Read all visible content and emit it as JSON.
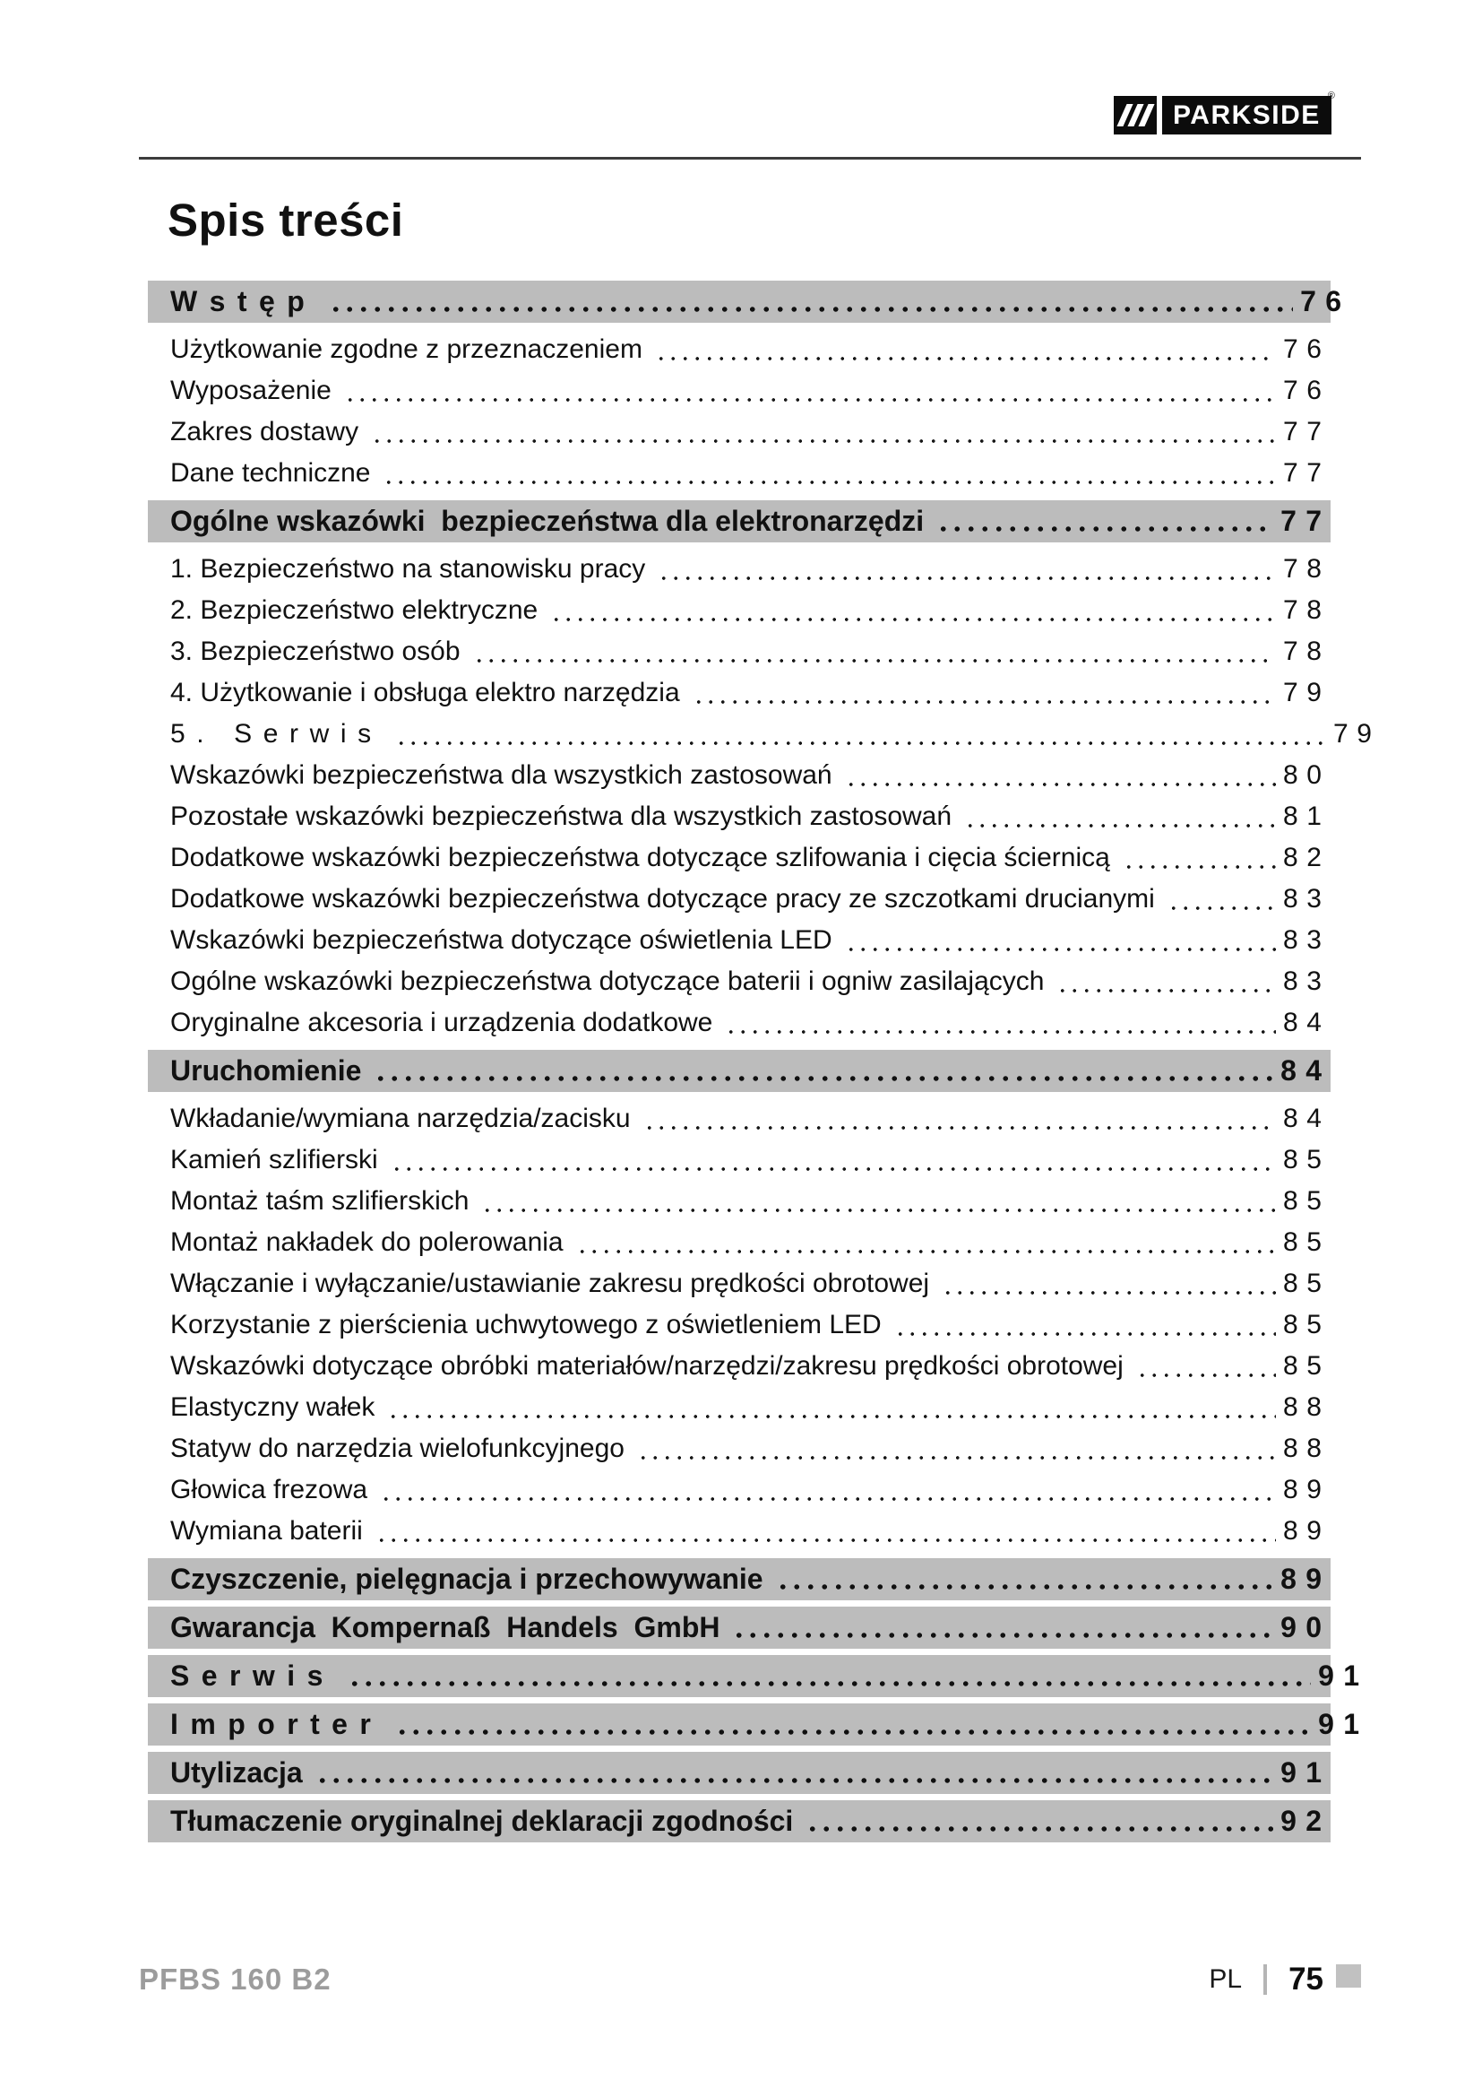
{
  "page": {
    "brand": {
      "logo_text": "PARKSIDE",
      "logo_reg": "®",
      "logo_bg": "#0c0c0c"
    },
    "title": "Spis treści",
    "accent_gray": "#bcbcbc",
    "toc": [
      {
        "label": "Wstęp",
        "page": "76",
        "style": "header",
        "spaced": true,
        "numOut": "sm"
      },
      {
        "label": "Użytkowanie zgodne z przeznaczeniem",
        "page": "76",
        "style": "item"
      },
      {
        "label": "Wyposażenie",
        "page": "76",
        "style": "item"
      },
      {
        "label": "Zakres dostawy",
        "page": "77",
        "style": "item"
      },
      {
        "label": "Dane techniczne",
        "page": "77",
        "style": "item"
      },
      {
        "label": "Ogólne wskazówki  bezpieczeństwa dla elektronarzędzi",
        "page": "77",
        "style": "header"
      },
      {
        "label": "1. Bezpieczeństwo na stanowisku pracy",
        "page": "78",
        "style": "item"
      },
      {
        "label": "2. Bezpieczeństwo elektryczne",
        "page": "78",
        "style": "item"
      },
      {
        "label": "3. Bezpieczeństwo osób",
        "page": "78",
        "style": "item"
      },
      {
        "label": "4. Użytkowanie i obsługa elektro narzędzia",
        "page": "79",
        "style": "item"
      },
      {
        "label": "5. Serwis",
        "page": "79",
        "style": "item",
        "spaced": true,
        "numOut": "lg"
      },
      {
        "label": "Wskazówki bezpieczeństwa dla wszystkich zastosowań",
        "page": "80",
        "style": "item"
      },
      {
        "label": "Pozostałe wskazówki bezpieczeństwa dla wszystkich zastosowań",
        "page": "81",
        "style": "item"
      },
      {
        "label": "Dodatkowe wskazówki bezpieczeństwa dotyczące szlifowania i cięcia ściernicą",
        "page": "82",
        "style": "item"
      },
      {
        "label": "Dodatkowe wskazówki bezpieczeństwa dotyczące pracy ze szczotkami drucianymi",
        "page": "83",
        "style": "item"
      },
      {
        "label": "Wskazówki bezpieczeństwa dotyczące oświetlenia LED",
        "page": "83",
        "style": "item"
      },
      {
        "label": "Ogólne wskazówki bezpieczeństwa dotyczące baterii i ogniw zasilających",
        "page": "83",
        "style": "item"
      },
      {
        "label": "Oryginalne akcesoria i urządzenia dodatkowe",
        "page": "84",
        "style": "item"
      },
      {
        "label": "Uruchomienie",
        "page": "84",
        "style": "header"
      },
      {
        "label": "Wkładanie/wymiana narzędzia/zacisku",
        "page": "84",
        "style": "item"
      },
      {
        "label": "Kamień szlifierski",
        "page": "85",
        "style": "item"
      },
      {
        "label": "Montaż taśm szlifierskich",
        "page": "85",
        "style": "item"
      },
      {
        "label": "Montaż nakładek do polerowania",
        "page": "85",
        "style": "item"
      },
      {
        "label": "Włączanie i wyłączanie/ustawianie zakresu prędkości obrotowej",
        "page": "85",
        "style": "item"
      },
      {
        "label": "Korzystanie z pierścienia uchwytowego z oświetleniem LED",
        "page": "85",
        "style": "item"
      },
      {
        "label": "Wskazówki dotyczące obróbki materiałów/narzędzi/zakresu prędkości obrotowej",
        "page": "85",
        "style": "item"
      },
      {
        "label": "Elastyczny wałek",
        "page": "88",
        "style": "item"
      },
      {
        "label": "Statyw do narzędzia wielofunkcyjnego",
        "page": "88",
        "style": "item"
      },
      {
        "label": "Głowica frezowa",
        "page": "89",
        "style": "item"
      },
      {
        "label": "Wymiana baterii",
        "page": "89",
        "style": "item"
      },
      {
        "label": "Czyszczenie, pielęgnacja i przechowywanie",
        "page": "89",
        "style": "header"
      },
      {
        "label": "Gwarancja  Kompernaß  Handels  GmbH",
        "page": "90",
        "style": "header"
      },
      {
        "label": "Serwis",
        "page": "91",
        "style": "header",
        "spaced": true,
        "numOut": "md"
      },
      {
        "label": "Importer",
        "page": "91",
        "style": "header",
        "spaced": true,
        "numOut": "md"
      },
      {
        "label": "Utylizacja",
        "page": "91",
        "style": "header"
      },
      {
        "label": "Tłumaczenie oryginalnej deklaracji zgodności",
        "page": "92",
        "style": "header"
      }
    ],
    "footer": {
      "model": "PFBS 160 B2",
      "lang": "PL",
      "page_number": "75"
    }
  }
}
